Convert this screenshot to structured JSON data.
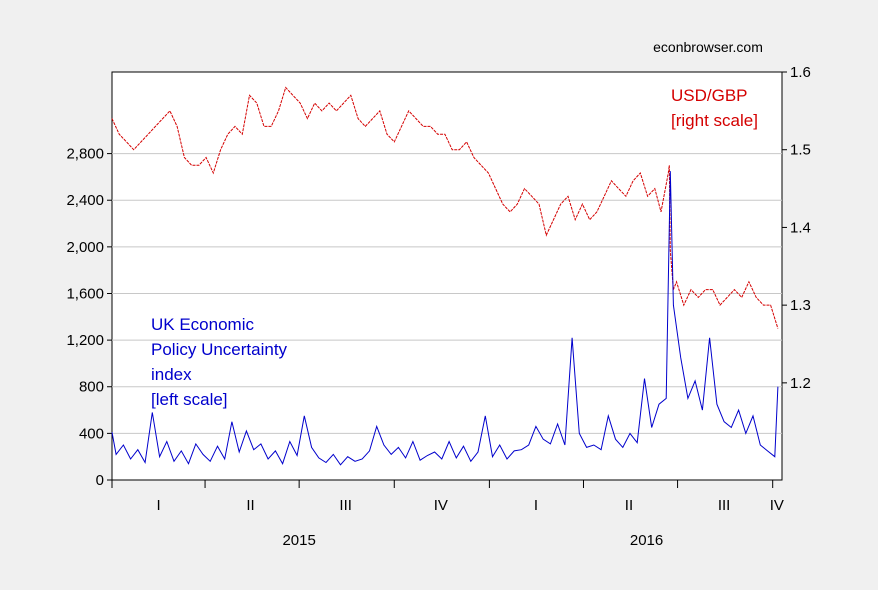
{
  "source_label": "econbrowser.com",
  "chart_data": {
    "type": "line",
    "title": "",
    "x_range": [
      "2015-01-01",
      "2016-10-10"
    ],
    "quarter_labels": [
      {
        "label": "I",
        "date": "2015-02-15"
      },
      {
        "label": "II",
        "date": "2015-05-15"
      },
      {
        "label": "III",
        "date": "2015-08-15"
      },
      {
        "label": "IV",
        "date": "2015-11-15"
      },
      {
        "label": "I",
        "date": "2016-02-15"
      },
      {
        "label": "II",
        "date": "2016-05-15"
      },
      {
        "label": "III",
        "date": "2016-08-15"
      },
      {
        "label": "IV",
        "date": "2016-10-05"
      }
    ],
    "quarter_ticks": [
      "2015-01-01",
      "2015-04-01",
      "2015-07-01",
      "2015-10-01",
      "2016-01-01",
      "2016-04-01",
      "2016-07-01",
      "2016-10-01"
    ],
    "year_labels": [
      {
        "label": "2015",
        "date": "2015-07-01"
      },
      {
        "label": "2016",
        "date": "2016-06-01"
      }
    ],
    "left_axis": {
      "ylim": [
        0,
        3500
      ],
      "ticks": [
        0,
        400,
        800,
        1200,
        1600,
        2000,
        2400,
        2800
      ],
      "tick_labels": [
        "0",
        "400",
        "800",
        "1,200",
        "1,600",
        "2,000",
        "2,400",
        "2,800"
      ],
      "grid": true
    },
    "right_axis": {
      "ylim": [
        1.075,
        1.6
      ],
      "ticks": [
        1.2,
        1.3,
        1.4,
        1.5,
        1.6
      ],
      "tick_labels": [
        "1.2",
        "1.3",
        "1.4",
        "1.5",
        "1.6"
      ]
    },
    "series": [
      {
        "axis": "right",
        "color": "#d40000",
        "label_lines": [
          "USD/GBP",
          "[right scale]"
        ],
        "points": [
          [
            "2015-01-01",
            1.54
          ],
          [
            "2015-01-08",
            1.52
          ],
          [
            "2015-01-15",
            1.51
          ],
          [
            "2015-01-22",
            1.5
          ],
          [
            "2015-01-29",
            1.51
          ],
          [
            "2015-02-05",
            1.52
          ],
          [
            "2015-02-12",
            1.53
          ],
          [
            "2015-02-19",
            1.54
          ],
          [
            "2015-02-26",
            1.55
          ],
          [
            "2015-03-05",
            1.53
          ],
          [
            "2015-03-12",
            1.49
          ],
          [
            "2015-03-19",
            1.48
          ],
          [
            "2015-03-26",
            1.48
          ],
          [
            "2015-04-02",
            1.49
          ],
          [
            "2015-04-09",
            1.47
          ],
          [
            "2015-04-16",
            1.5
          ],
          [
            "2015-04-23",
            1.52
          ],
          [
            "2015-04-30",
            1.53
          ],
          [
            "2015-05-07",
            1.52
          ],
          [
            "2015-05-14",
            1.57
          ],
          [
            "2015-05-21",
            1.56
          ],
          [
            "2015-05-28",
            1.53
          ],
          [
            "2015-06-04",
            1.53
          ],
          [
            "2015-06-11",
            1.55
          ],
          [
            "2015-06-18",
            1.58
          ],
          [
            "2015-06-25",
            1.57
          ],
          [
            "2015-07-02",
            1.56
          ],
          [
            "2015-07-09",
            1.54
          ],
          [
            "2015-07-16",
            1.56
          ],
          [
            "2015-07-23",
            1.55
          ],
          [
            "2015-07-30",
            1.56
          ],
          [
            "2015-08-06",
            1.55
          ],
          [
            "2015-08-13",
            1.56
          ],
          [
            "2015-08-20",
            1.57
          ],
          [
            "2015-08-27",
            1.54
          ],
          [
            "2015-09-03",
            1.53
          ],
          [
            "2015-09-10",
            1.54
          ],
          [
            "2015-09-17",
            1.55
          ],
          [
            "2015-09-24",
            1.52
          ],
          [
            "2015-10-01",
            1.51
          ],
          [
            "2015-10-08",
            1.53
          ],
          [
            "2015-10-15",
            1.55
          ],
          [
            "2015-10-22",
            1.54
          ],
          [
            "2015-10-29",
            1.53
          ],
          [
            "2015-11-05",
            1.53
          ],
          [
            "2015-11-12",
            1.52
          ],
          [
            "2015-11-19",
            1.52
          ],
          [
            "2015-11-26",
            1.5
          ],
          [
            "2015-12-03",
            1.5
          ],
          [
            "2015-12-10",
            1.51
          ],
          [
            "2015-12-17",
            1.49
          ],
          [
            "2015-12-24",
            1.48
          ],
          [
            "2015-12-31",
            1.47
          ],
          [
            "2016-01-07",
            1.45
          ],
          [
            "2016-01-14",
            1.43
          ],
          [
            "2016-01-21",
            1.42
          ],
          [
            "2016-01-28",
            1.43
          ],
          [
            "2016-02-04",
            1.45
          ],
          [
            "2016-02-11",
            1.44
          ],
          [
            "2016-02-18",
            1.43
          ],
          [
            "2016-02-25",
            1.39
          ],
          [
            "2016-03-03",
            1.41
          ],
          [
            "2016-03-10",
            1.43
          ],
          [
            "2016-03-17",
            1.44
          ],
          [
            "2016-03-24",
            1.41
          ],
          [
            "2016-03-31",
            1.43
          ],
          [
            "2016-04-07",
            1.41
          ],
          [
            "2016-04-14",
            1.42
          ],
          [
            "2016-04-21",
            1.44
          ],
          [
            "2016-04-28",
            1.46
          ],
          [
            "2016-05-05",
            1.45
          ],
          [
            "2016-05-12",
            1.44
          ],
          [
            "2016-05-19",
            1.46
          ],
          [
            "2016-05-26",
            1.47
          ],
          [
            "2016-06-02",
            1.44
          ],
          [
            "2016-06-09",
            1.45
          ],
          [
            "2016-06-15",
            1.42
          ],
          [
            "2016-06-22",
            1.47
          ],
          [
            "2016-06-23",
            1.48
          ],
          [
            "2016-06-24",
            1.37
          ],
          [
            "2016-06-27",
            1.32
          ],
          [
            "2016-06-30",
            1.33
          ],
          [
            "2016-07-07",
            1.3
          ],
          [
            "2016-07-14",
            1.32
          ],
          [
            "2016-07-21",
            1.31
          ],
          [
            "2016-07-28",
            1.32
          ],
          [
            "2016-08-04",
            1.32
          ],
          [
            "2016-08-11",
            1.3
          ],
          [
            "2016-08-18",
            1.31
          ],
          [
            "2016-08-25",
            1.32
          ],
          [
            "2016-09-01",
            1.31
          ],
          [
            "2016-09-08",
            1.33
          ],
          [
            "2016-09-15",
            1.31
          ],
          [
            "2016-09-22",
            1.3
          ],
          [
            "2016-09-29",
            1.3
          ],
          [
            "2016-10-06",
            1.27
          ]
        ]
      },
      {
        "axis": "left",
        "color": "#0000cc",
        "label_lines": [
          "UK Economic",
          "Policy Uncertainty",
          "index",
          "[left scale]"
        ],
        "points": [
          [
            "2015-01-01",
            410
          ],
          [
            "2015-01-05",
            220
          ],
          [
            "2015-01-12",
            300
          ],
          [
            "2015-01-19",
            180
          ],
          [
            "2015-01-26",
            260
          ],
          [
            "2015-02-02",
            150
          ],
          [
            "2015-02-09",
            580
          ],
          [
            "2015-02-16",
            200
          ],
          [
            "2015-02-23",
            330
          ],
          [
            "2015-03-02",
            160
          ],
          [
            "2015-03-09",
            250
          ],
          [
            "2015-03-16",
            140
          ],
          [
            "2015-03-23",
            310
          ],
          [
            "2015-03-30",
            220
          ],
          [
            "2015-04-06",
            160
          ],
          [
            "2015-04-13",
            290
          ],
          [
            "2015-04-20",
            180
          ],
          [
            "2015-04-27",
            500
          ],
          [
            "2015-05-04",
            240
          ],
          [
            "2015-05-11",
            420
          ],
          [
            "2015-05-18",
            260
          ],
          [
            "2015-05-25",
            310
          ],
          [
            "2015-06-01",
            180
          ],
          [
            "2015-06-08",
            250
          ],
          [
            "2015-06-15",
            140
          ],
          [
            "2015-06-22",
            330
          ],
          [
            "2015-06-29",
            210
          ],
          [
            "2015-07-06",
            550
          ],
          [
            "2015-07-13",
            280
          ],
          [
            "2015-07-20",
            190
          ],
          [
            "2015-07-27",
            150
          ],
          [
            "2015-08-03",
            220
          ],
          [
            "2015-08-10",
            130
          ],
          [
            "2015-08-17",
            200
          ],
          [
            "2015-08-24",
            160
          ],
          [
            "2015-08-31",
            180
          ],
          [
            "2015-09-07",
            250
          ],
          [
            "2015-09-14",
            460
          ],
          [
            "2015-09-21",
            300
          ],
          [
            "2015-09-28",
            220
          ],
          [
            "2015-10-05",
            280
          ],
          [
            "2015-10-12",
            190
          ],
          [
            "2015-10-19",
            330
          ],
          [
            "2015-10-26",
            170
          ],
          [
            "2015-11-02",
            210
          ],
          [
            "2015-11-09",
            240
          ],
          [
            "2015-11-16",
            180
          ],
          [
            "2015-11-23",
            330
          ],
          [
            "2015-11-30",
            190
          ],
          [
            "2015-12-07",
            290
          ],
          [
            "2015-12-14",
            160
          ],
          [
            "2015-12-21",
            240
          ],
          [
            "2015-12-28",
            550
          ],
          [
            "2016-01-04",
            200
          ],
          [
            "2016-01-11",
            300
          ],
          [
            "2016-01-18",
            180
          ],
          [
            "2016-01-25",
            250
          ],
          [
            "2016-02-01",
            260
          ],
          [
            "2016-02-08",
            300
          ],
          [
            "2016-02-15",
            460
          ],
          [
            "2016-02-22",
            350
          ],
          [
            "2016-02-29",
            310
          ],
          [
            "2016-03-07",
            480
          ],
          [
            "2016-03-14",
            300
          ],
          [
            "2016-03-21",
            1220
          ],
          [
            "2016-03-28",
            400
          ],
          [
            "2016-04-04",
            280
          ],
          [
            "2016-04-11",
            300
          ],
          [
            "2016-04-18",
            260
          ],
          [
            "2016-04-25",
            550
          ],
          [
            "2016-05-02",
            350
          ],
          [
            "2016-05-09",
            280
          ],
          [
            "2016-05-16",
            400
          ],
          [
            "2016-05-23",
            320
          ],
          [
            "2016-05-30",
            870
          ],
          [
            "2016-06-06",
            450
          ],
          [
            "2016-06-13",
            650
          ],
          [
            "2016-06-20",
            700
          ],
          [
            "2016-06-24",
            2650
          ],
          [
            "2016-06-27",
            1500
          ],
          [
            "2016-07-04",
            1050
          ],
          [
            "2016-07-11",
            700
          ],
          [
            "2016-07-18",
            850
          ],
          [
            "2016-07-25",
            600
          ],
          [
            "2016-08-01",
            1220
          ],
          [
            "2016-08-08",
            650
          ],
          [
            "2016-08-15",
            500
          ],
          [
            "2016-08-22",
            450
          ],
          [
            "2016-08-29",
            600
          ],
          [
            "2016-09-05",
            400
          ],
          [
            "2016-09-12",
            550
          ],
          [
            "2016-09-19",
            300
          ],
          [
            "2016-09-26",
            250
          ],
          [
            "2016-10-03",
            200
          ],
          [
            "2016-10-06",
            800
          ]
        ]
      }
    ]
  }
}
